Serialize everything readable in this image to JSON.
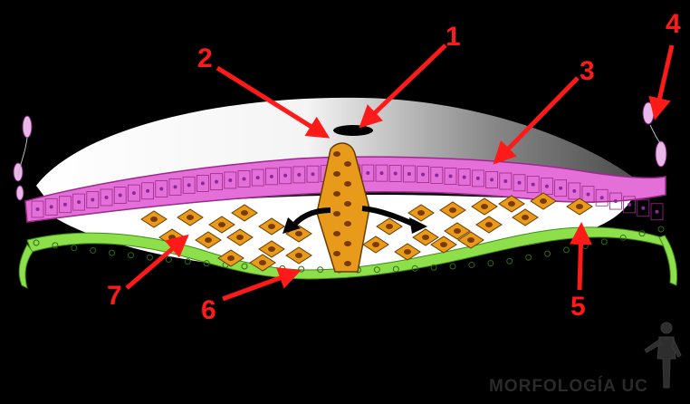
{
  "diagram": {
    "callout_labels": [
      "1",
      "2",
      "3",
      "4",
      "5",
      "6",
      "7"
    ],
    "watermark": "MORFOLOGÍA UC",
    "colors": {
      "background": "#000000",
      "arrow": "#ff1a1a",
      "epiblast": "#e46fd8",
      "amnion_cavity": "#ffffff",
      "mesoderm_cells": "#e89b1a",
      "hypoblast": "#8ee04a",
      "cell_nucleus": "#7a3a00"
    }
  }
}
